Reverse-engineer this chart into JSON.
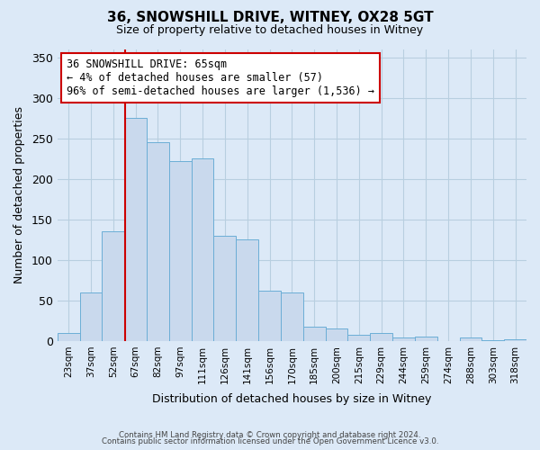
{
  "title": "36, SNOWSHILL DRIVE, WITNEY, OX28 5GT",
  "subtitle": "Size of property relative to detached houses in Witney",
  "xlabel": "Distribution of detached houses by size in Witney",
  "ylabel": "Number of detached properties",
  "bar_labels": [
    "23sqm",
    "37sqm",
    "52sqm",
    "67sqm",
    "82sqm",
    "97sqm",
    "111sqm",
    "126sqm",
    "141sqm",
    "156sqm",
    "170sqm",
    "185sqm",
    "200sqm",
    "215sqm",
    "229sqm",
    "244sqm",
    "259sqm",
    "274sqm",
    "288sqm",
    "303sqm",
    "318sqm"
  ],
  "bar_values": [
    10,
    60,
    135,
    275,
    245,
    222,
    225,
    130,
    125,
    62,
    60,
    18,
    16,
    8,
    10,
    4,
    5,
    0,
    4,
    1,
    2
  ],
  "bar_color": "#c9d9ed",
  "bar_edge_color": "#6baed6",
  "annotation_title": "36 SNOWSHILL DRIVE: 65sqm",
  "annotation_line1": "← 4% of detached houses are smaller (57)",
  "annotation_line2": "96% of semi-detached houses are larger (1,536) →",
  "annotation_box_color": "#ffffff",
  "annotation_box_edge": "#cc0000",
  "ref_line_color": "#cc0000",
  "ylim": [
    0,
    360
  ],
  "yticks": [
    0,
    50,
    100,
    150,
    200,
    250,
    300,
    350
  ],
  "footer_line1": "Contains HM Land Registry data © Crown copyright and database right 2024.",
  "footer_line2": "Contains public sector information licensed under the Open Government Licence v3.0.",
  "bg_color": "#dce9f7",
  "plot_bg_color": "#dce9f7",
  "grid_color": "#b8cfe0"
}
